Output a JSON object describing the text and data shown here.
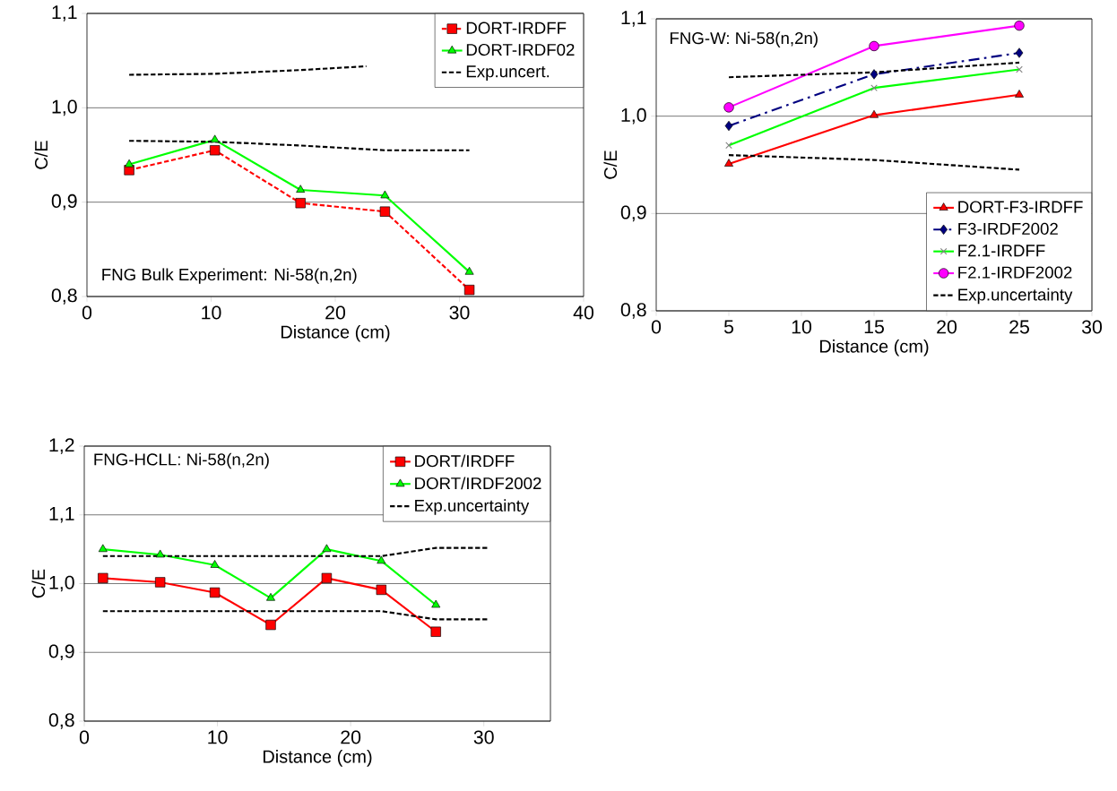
{
  "chart_data": [
    {
      "type": "line",
      "xlabel": "Distance (cm)",
      "ylabel": "C/E",
      "annotations": [
        "FNG Bulk Experiment: Ni-58(n,2n)"
      ],
      "xlim": [
        0,
        40
      ],
      "xticks": [
        0,
        10,
        20,
        30,
        40
      ],
      "ylim": [
        0.8,
        1.1
      ],
      "yticks": [
        {
          "value": 0.8,
          "label": "0,8"
        },
        {
          "value": 0.9,
          "label": "0,9"
        },
        {
          "value": 1.0,
          "label": "1,0"
        },
        {
          "value": 1.1,
          "label": "1,1"
        }
      ],
      "grid": "y",
      "legend": "top right",
      "series": [
        {
          "name": "DORT-IRDFF",
          "color": "#ff0000",
          "marker": "square",
          "line_style": "dashed",
          "x": [
            3.4,
            10.3,
            17.2,
            24.0,
            30.8
          ],
          "values": [
            0.934,
            0.955,
            0.899,
            0.89,
            0.807
          ]
        },
        {
          "name": "DORT-IRDF02",
          "color": "#00ff00",
          "marker": "triangle",
          "line_style": "solid",
          "x": [
            3.4,
            10.3,
            17.2,
            24.0,
            30.8
          ],
          "values": [
            0.94,
            0.966,
            0.913,
            0.907,
            0.826
          ]
        },
        {
          "name": "Exp.uncert.",
          "color": "#000000",
          "marker": "none",
          "line_style": "dashed",
          "x": [
            3.4,
            10.3,
            17.2,
            22.5
          ],
          "values": [
            1.035,
            1.036,
            1.04,
            1.044
          ]
        },
        {
          "color": "#000000",
          "marker": "none",
          "line_style": "dashed",
          "x": [
            3.4,
            10.3,
            17.2,
            24.0,
            30.8
          ],
          "values": [
            0.965,
            0.964,
            0.96,
            0.955,
            0.955
          ]
        }
      ]
    },
    {
      "type": "line",
      "xlabel": "Distance (cm)",
      "ylabel": "C/E",
      "annotations": [
        "FNG-W: Ni-58(n,2n)"
      ],
      "xlim": [
        0,
        30
      ],
      "xticks": [
        0,
        5,
        10,
        15,
        20,
        25,
        30
      ],
      "ylim": [
        0.8,
        1.1
      ],
      "yticks": [
        {
          "value": 0.8,
          "label": "0,8"
        },
        {
          "value": 0.9,
          "label": "0,9"
        },
        {
          "value": 1.0,
          "label": "1,0"
        },
        {
          "value": 1.1,
          "label": "1,1"
        }
      ],
      "grid": "y",
      "legend": "bottom right",
      "series": [
        {
          "name": "DORT-F3-IRDFF",
          "color": "#ff0000",
          "marker": "triangle",
          "line_style": "solid",
          "x": [
            5,
            15,
            25
          ],
          "values": [
            0.951,
            1.001,
            1.022
          ]
        },
        {
          "name": "F3-IRDF2002",
          "color": "#000080",
          "marker": "diamond",
          "line_style": "dashdot",
          "x": [
            5,
            15,
            25
          ],
          "values": [
            0.99,
            1.043,
            1.065
          ]
        },
        {
          "name": "F2.1-IRDFF",
          "color": "#00ff00",
          "marker": "cross",
          "line_style": "solid",
          "x": [
            5,
            15,
            25
          ],
          "values": [
            0.97,
            1.029,
            1.048
          ]
        },
        {
          "name": "F2.1-IRDF2002",
          "color": "#ff00ff",
          "marker": "circle",
          "line_style": "solid",
          "x": [
            5,
            15,
            25
          ],
          "values": [
            1.009,
            1.072,
            1.093
          ]
        },
        {
          "name": "Exp.uncertainty",
          "color": "#000000",
          "marker": "none",
          "line_style": "dashed",
          "x": [
            5,
            15,
            25
          ],
          "values": [
            1.04,
            1.045,
            1.055
          ]
        },
        {
          "color": "#000000",
          "marker": "none",
          "line_style": "dashed",
          "x": [
            5,
            15,
            25
          ],
          "values": [
            0.96,
            0.955,
            0.945
          ]
        }
      ]
    },
    {
      "type": "line",
      "xlabel": "Distance (cm)",
      "ylabel": "C/E",
      "annotations": [
        "FNG-HCLL: Ni-58(n,2n)"
      ],
      "xlim": [
        0,
        35
      ],
      "xticks": [
        0,
        10,
        20,
        30
      ],
      "ylim": [
        0.8,
        1.2
      ],
      "yticks": [
        {
          "value": 0.8,
          "label": "0,8"
        },
        {
          "value": 0.9,
          "label": "0,9"
        },
        {
          "value": 1.0,
          "label": "1,0"
        },
        {
          "value": 1.1,
          "label": "1,1"
        },
        {
          "value": 1.2,
          "label": "1,2"
        }
      ],
      "grid": "y",
      "legend": "top right",
      "series": [
        {
          "name": "DORT/IRDFF",
          "color": "#ff0000",
          "marker": "square",
          "line_style": "solid",
          "x": [
            1.4,
            5.7,
            9.8,
            14.0,
            18.2,
            22.3,
            26.4
          ],
          "values": [
            1.008,
            1.002,
            0.987,
            0.94,
            1.008,
            0.991,
            0.93
          ]
        },
        {
          "name": "DORT/IRDF2002",
          "color": "#00ff00",
          "marker": "triangle",
          "line_style": "solid",
          "x": [
            1.4,
            5.7,
            9.8,
            14.0,
            18.2,
            22.3,
            26.4
          ],
          "values": [
            1.05,
            1.042,
            1.027,
            0.979,
            1.05,
            1.033,
            0.969
          ]
        },
        {
          "name": "Exp.uncertainty",
          "color": "#000000",
          "marker": "none",
          "line_style": "dashed",
          "x": [
            1.4,
            22.3,
            26.4,
            30.4
          ],
          "values": [
            1.04,
            1.04,
            1.052,
            1.052
          ]
        },
        {
          "color": "#000000",
          "marker": "none",
          "line_style": "dashed",
          "x": [
            1.4,
            22.3,
            26.4,
            30.4
          ],
          "values": [
            0.96,
            0.96,
            0.948,
            0.948
          ]
        }
      ]
    }
  ]
}
